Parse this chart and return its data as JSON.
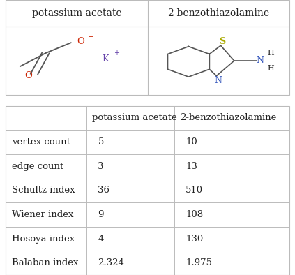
{
  "col_headers": [
    "",
    "potassium acetate",
    "2-benzothiazolamine"
  ],
  "row_labels": [
    "vertex count",
    "edge count",
    "Schultz index",
    "Wiener index",
    "Hosoya index",
    "Balaban index"
  ],
  "col1_values": [
    "5",
    "3",
    "36",
    "9",
    "4",
    "2.324"
  ],
  "col2_values": [
    "10",
    "13",
    "510",
    "108",
    "130",
    "1.975"
  ],
  "header_fontsize": 10,
  "cell_fontsize": 10,
  "bg_color": "#ffffff",
  "border_color": "#bbbbbb",
  "text_color": "#222222",
  "molecule1_name": "potassium acetate",
  "molecule2_name": "2-benzothiazolamine",
  "red_color": "#cc2200",
  "purple_color": "#6644aa",
  "blue_color": "#3355bb",
  "sulfur_color": "#aaaa00",
  "bond_color": "#555555"
}
